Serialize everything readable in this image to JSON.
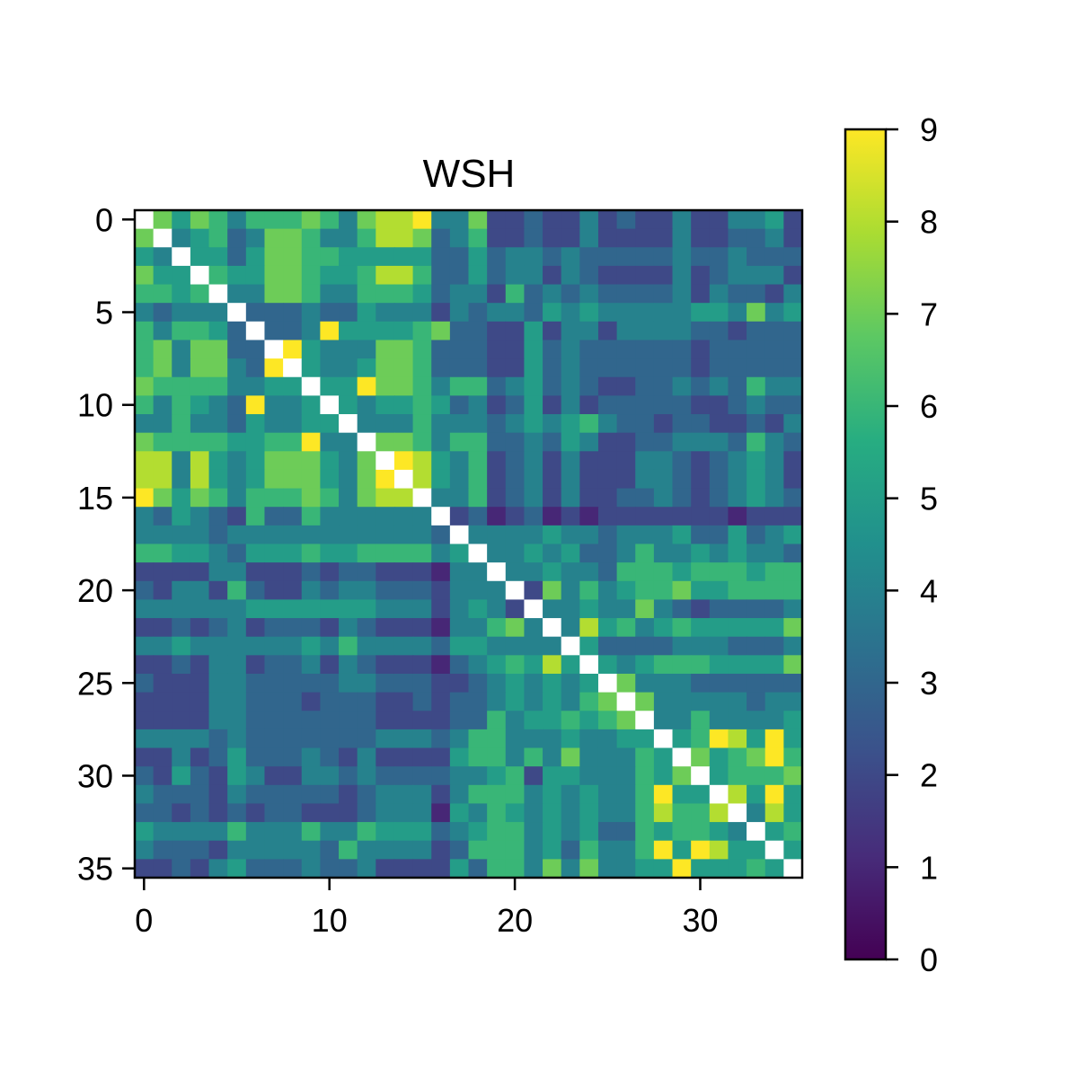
{
  "chart_data": {
    "type": "heatmap",
    "title": "WSH",
    "xlabel": "",
    "ylabel": "",
    "n": 36,
    "xticks": [
      0,
      10,
      20,
      30
    ],
    "yticks": [
      0,
      5,
      10,
      15,
      20,
      25,
      30,
      35
    ],
    "xtick_labels": [
      "0",
      "10",
      "20",
      "30"
    ],
    "ytick_labels": [
      "0",
      "5",
      "10",
      "15",
      "20",
      "25",
      "30",
      "35"
    ],
    "colorbar": {
      "min": 0,
      "max": 9,
      "ticks": [
        0,
        1,
        2,
        3,
        4,
        5,
        6,
        7,
        8,
        9
      ],
      "tick_labels": [
        "0",
        "1",
        "2",
        "3",
        "4",
        "5",
        "6",
        "7",
        "8",
        "9"
      ],
      "colormap": "viridis"
    },
    "diagonal": "blank",
    "grid": false,
    "matrix": [
      [
        null,
        7,
        5,
        7,
        6,
        4,
        6,
        6,
        6,
        7,
        6,
        4,
        7,
        8,
        8,
        9,
        4,
        4,
        7,
        2,
        2,
        3,
        2,
        2,
        4,
        2,
        3,
        2,
        2,
        4,
        2,
        2,
        4,
        4,
        5,
        2
      ],
      [
        7,
        null,
        4,
        5,
        6,
        3,
        4,
        7,
        7,
        6,
        4,
        4,
        6,
        8,
        8,
        7,
        3,
        4,
        6,
        2,
        2,
        3,
        2,
        2,
        4,
        2,
        2,
        2,
        2,
        4,
        2,
        2,
        3,
        3,
        4,
        2
      ],
      [
        5,
        4,
        null,
        5,
        5,
        3,
        5,
        7,
        7,
        6,
        6,
        5,
        5,
        5,
        5,
        5,
        3,
        3,
        5,
        3,
        4,
        4,
        3,
        4,
        3,
        3,
        3,
        3,
        3,
        4,
        3,
        3,
        4,
        3,
        3,
        3
      ],
      [
        7,
        5,
        5,
        null,
        6,
        5,
        5,
        7,
        7,
        6,
        5,
        5,
        6,
        8,
        8,
        6,
        3,
        3,
        5,
        3,
        4,
        4,
        2,
        4,
        3,
        2,
        2,
        2,
        2,
        4,
        2,
        3,
        4,
        4,
        4,
        2
      ],
      [
        6,
        6,
        5,
        6,
        null,
        4,
        4,
        7,
        7,
        6,
        4,
        4,
        6,
        6,
        6,
        5,
        3,
        4,
        4,
        2,
        6,
        3,
        4,
        3,
        4,
        3,
        3,
        3,
        3,
        4,
        2,
        4,
        3,
        3,
        2,
        4
      ],
      [
        4,
        3,
        4,
        4,
        4,
        null,
        3,
        3,
        3,
        4,
        3,
        3,
        5,
        4,
        4,
        4,
        2,
        4,
        3,
        4,
        4,
        3,
        5,
        4,
        5,
        4,
        4,
        4,
        4,
        4,
        5,
        5,
        4,
        7,
        4,
        5
      ],
      [
        6,
        4,
        6,
        6,
        5,
        3,
        null,
        3,
        3,
        4,
        9,
        5,
        5,
        5,
        5,
        6,
        7,
        3,
        3,
        2,
        2,
        5,
        2,
        4,
        4,
        2,
        4,
        4,
        4,
        4,
        3,
        3,
        2,
        3,
        3,
        3
      ],
      [
        6,
        7,
        4,
        7,
        7,
        3,
        3,
        null,
        9,
        5,
        4,
        4,
        4,
        7,
        7,
        6,
        3,
        3,
        3,
        2,
        2,
        5,
        3,
        4,
        3,
        3,
        3,
        3,
        3,
        3,
        2,
        3,
        3,
        3,
        3,
        3
      ],
      [
        6,
        7,
        4,
        7,
        7,
        4,
        3,
        9,
        null,
        5,
        4,
        4,
        5,
        7,
        7,
        6,
        3,
        3,
        3,
        2,
        2,
        5,
        3,
        4,
        3,
        3,
        3,
        3,
        3,
        3,
        2,
        3,
        3,
        3,
        3,
        3
      ],
      [
        7,
        6,
        6,
        6,
        6,
        4,
        4,
        5,
        5,
        null,
        5,
        5,
        9,
        7,
        7,
        6,
        4,
        6,
        6,
        3,
        4,
        5,
        3,
        4,
        3,
        2,
        2,
        3,
        3,
        4,
        3,
        4,
        3,
        6,
        4,
        4
      ],
      [
        6,
        4,
        6,
        5,
        4,
        3,
        9,
        4,
        4,
        5,
        null,
        5,
        4,
        5,
        5,
        6,
        5,
        3,
        4,
        2,
        3,
        5,
        2,
        4,
        2,
        3,
        3,
        3,
        3,
        3,
        2,
        2,
        3,
        4,
        3,
        3
      ],
      [
        4,
        4,
        6,
        4,
        4,
        3,
        5,
        4,
        4,
        5,
        5,
        null,
        4,
        4,
        4,
        6,
        4,
        4,
        4,
        3,
        4,
        5,
        4,
        5,
        6,
        4,
        3,
        3,
        2,
        3,
        3,
        2,
        2,
        3,
        2,
        4
      ],
      [
        7,
        6,
        6,
        6,
        6,
        5,
        5,
        6,
        6,
        9,
        4,
        4,
        null,
        7,
        7,
        6,
        4,
        6,
        6,
        3,
        3,
        4,
        3,
        5,
        4,
        2,
        2,
        3,
        3,
        4,
        4,
        4,
        3,
        6,
        4,
        3
      ],
      [
        8,
        8,
        4,
        8,
        5,
        4,
        5,
        7,
        7,
        7,
        5,
        4,
        7,
        null,
        9,
        8,
        5,
        4,
        6,
        2,
        3,
        4,
        2,
        4,
        2,
        2,
        2,
        4,
        4,
        3,
        2,
        3,
        4,
        5,
        4,
        2
      ],
      [
        8,
        8,
        4,
        8,
        5,
        4,
        5,
        7,
        7,
        7,
        5,
        4,
        7,
        9,
        null,
        8,
        5,
        4,
        6,
        2,
        3,
        4,
        2,
        4,
        2,
        2,
        2,
        4,
        4,
        3,
        2,
        3,
        4,
        5,
        4,
        2
      ],
      [
        9,
        7,
        5,
        7,
        6,
        4,
        6,
        6,
        6,
        7,
        6,
        4,
        7,
        8,
        8,
        null,
        4,
        4,
        6,
        2,
        3,
        4,
        2,
        4,
        2,
        2,
        3,
        3,
        4,
        3,
        2,
        3,
        4,
        5,
        4,
        3
      ],
      [
        4,
        3,
        5,
        4,
        3,
        2,
        6,
        3,
        3,
        6,
        4,
        4,
        4,
        4,
        4,
        4,
        null,
        2,
        3,
        1,
        2,
        3,
        1,
        2,
        1,
        2,
        2,
        2,
        2,
        2,
        2,
        2,
        1,
        2,
        2,
        2
      ],
      [
        4,
        4,
        4,
        4,
        3,
        4,
        4,
        4,
        4,
        4,
        4,
        4,
        4,
        4,
        4,
        4,
        3,
        null,
        4,
        4,
        4,
        4,
        5,
        4,
        4,
        3,
        4,
        4,
        4,
        5,
        3,
        3,
        5,
        3,
        4,
        5
      ],
      [
        6,
        6,
        5,
        5,
        4,
        3,
        5,
        5,
        5,
        6,
        5,
        5,
        6,
        6,
        6,
        6,
        4,
        5,
        null,
        4,
        4,
        5,
        4,
        5,
        3,
        3,
        4,
        6,
        4,
        4,
        5,
        4,
        5,
        4,
        4,
        3
      ],
      [
        2,
        2,
        2,
        2,
        4,
        4,
        2,
        2,
        2,
        3,
        2,
        3,
        3,
        2,
        2,
        2,
        1,
        4,
        4,
        null,
        4,
        4,
        5,
        4,
        4,
        3,
        6,
        6,
        6,
        5,
        6,
        6,
        6,
        5,
        6,
        6
      ],
      [
        3,
        2,
        4,
        4,
        2,
        6,
        3,
        2,
        2,
        4,
        3,
        4,
        4,
        3,
        3,
        3,
        2,
        4,
        4,
        4,
        null,
        2,
        7,
        4,
        6,
        4,
        5,
        6,
        6,
        7,
        5,
        5,
        6,
        6,
        6,
        6
      ],
      [
        4,
        4,
        4,
        4,
        4,
        4,
        5,
        5,
        5,
        5,
        5,
        5,
        5,
        4,
        4,
        4,
        2,
        4,
        5,
        4,
        2,
        null,
        4,
        4,
        5,
        4,
        4,
        7,
        4,
        3,
        2,
        3,
        3,
        3,
        3,
        4
      ],
      [
        2,
        2,
        3,
        2,
        3,
        4,
        2,
        3,
        3,
        3,
        2,
        4,
        3,
        2,
        2,
        2,
        1,
        4,
        4,
        6,
        7,
        4,
        null,
        4,
        8,
        5,
        6,
        4,
        5,
        6,
        5,
        5,
        5,
        5,
        5,
        7
      ],
      [
        4,
        4,
        5,
        4,
        4,
        4,
        4,
        4,
        4,
        5,
        4,
        6,
        4,
        4,
        4,
        4,
        3,
        5,
        5,
        4,
        4,
        4,
        4,
        null,
        5,
        3,
        3,
        3,
        3,
        4,
        4,
        4,
        3,
        3,
        3,
        4
      ],
      [
        2,
        2,
        3,
        2,
        4,
        4,
        2,
        3,
        3,
        4,
        2,
        4,
        3,
        2,
        2,
        2,
        1,
        3,
        4,
        5,
        6,
        5,
        8,
        5,
        null,
        5,
        4,
        5,
        6,
        6,
        6,
        5,
        5,
        5,
        5,
        7
      ],
      [
        3,
        2,
        2,
        2,
        4,
        4,
        3,
        3,
        3,
        3,
        3,
        4,
        4,
        3,
        3,
        3,
        2,
        2,
        3,
        4,
        5,
        4,
        5,
        4,
        5,
        null,
        7,
        4,
        4,
        4,
        3,
        3,
        3,
        3,
        3,
        3
      ],
      [
        2,
        2,
        2,
        2,
        4,
        4,
        3,
        3,
        3,
        2,
        3,
        3,
        3,
        2,
        2,
        3,
        2,
        3,
        3,
        4,
        5,
        4,
        5,
        4,
        6,
        7,
        null,
        7,
        4,
        4,
        4,
        4,
        4,
        3,
        4,
        4
      ],
      [
        2,
        2,
        2,
        2,
        4,
        4,
        3,
        3,
        3,
        3,
        3,
        3,
        3,
        2,
        2,
        2,
        2,
        3,
        3,
        6,
        4,
        5,
        5,
        6,
        5,
        6,
        7,
        null,
        4,
        4,
        6,
        4,
        4,
        4,
        4,
        5
      ],
      [
        4,
        4,
        4,
        4,
        3,
        4,
        3,
        3,
        3,
        3,
        3,
        3,
        3,
        4,
        4,
        4,
        3,
        4,
        6,
        6,
        4,
        4,
        4,
        5,
        4,
        4,
        5,
        5,
        null,
        5,
        6,
        9,
        8,
        5,
        9,
        5
      ],
      [
        2,
        2,
        4,
        2,
        3,
        5,
        3,
        3,
        3,
        4,
        3,
        2,
        4,
        2,
        2,
        2,
        2,
        5,
        6,
        6,
        4,
        6,
        4,
        7,
        4,
        4,
        4,
        6,
        5,
        null,
        7,
        5,
        6,
        7,
        9,
        6
      ],
      [
        3,
        2,
        5,
        3,
        2,
        5,
        4,
        2,
        2,
        4,
        4,
        3,
        4,
        3,
        3,
        3,
        3,
        4,
        4,
        5,
        6,
        2,
        5,
        5,
        4,
        4,
        4,
        6,
        5,
        7,
        null,
        5,
        6,
        6,
        6,
        7
      ],
      [
        4,
        3,
        3,
        3,
        2,
        4,
        3,
        3,
        3,
        3,
        3,
        2,
        3,
        4,
        4,
        4,
        2,
        4,
        6,
        6,
        6,
        4,
        5,
        4,
        5,
        4,
        4,
        6,
        9,
        5,
        5,
        null,
        8,
        5,
        9,
        5
      ],
      [
        3,
        3,
        2,
        3,
        2,
        3,
        2,
        3,
        3,
        2,
        2,
        2,
        3,
        4,
        4,
        4,
        1,
        5,
        4,
        6,
        5,
        4,
        5,
        4,
        5,
        4,
        4,
        6,
        8,
        6,
        6,
        8,
        null,
        4,
        8,
        5
      ],
      [
        5,
        4,
        4,
        4,
        4,
        6,
        4,
        4,
        4,
        6,
        4,
        4,
        6,
        5,
        5,
        5,
        3,
        4,
        5,
        6,
        6,
        4,
        5,
        4,
        5,
        3,
        3,
        6,
        5,
        6,
        6,
        5,
        4,
        null,
        5,
        6
      ],
      [
        4,
        3,
        3,
        3,
        2,
        4,
        4,
        4,
        4,
        4,
        3,
        6,
        4,
        4,
        4,
        4,
        2,
        3,
        6,
        6,
        6,
        4,
        5,
        3,
        6,
        4,
        4,
        6,
        9,
        5,
        9,
        8,
        5,
        5,
        null,
        5
      ],
      [
        2,
        2,
        3,
        2,
        4,
        5,
        3,
        3,
        3,
        4,
        3,
        3,
        4,
        2,
        2,
        2,
        2,
        5,
        3,
        6,
        6,
        4,
        7,
        4,
        7,
        4,
        4,
        5,
        5,
        9,
        5,
        5,
        5,
        6,
        5,
        null
      ]
    ]
  }
}
